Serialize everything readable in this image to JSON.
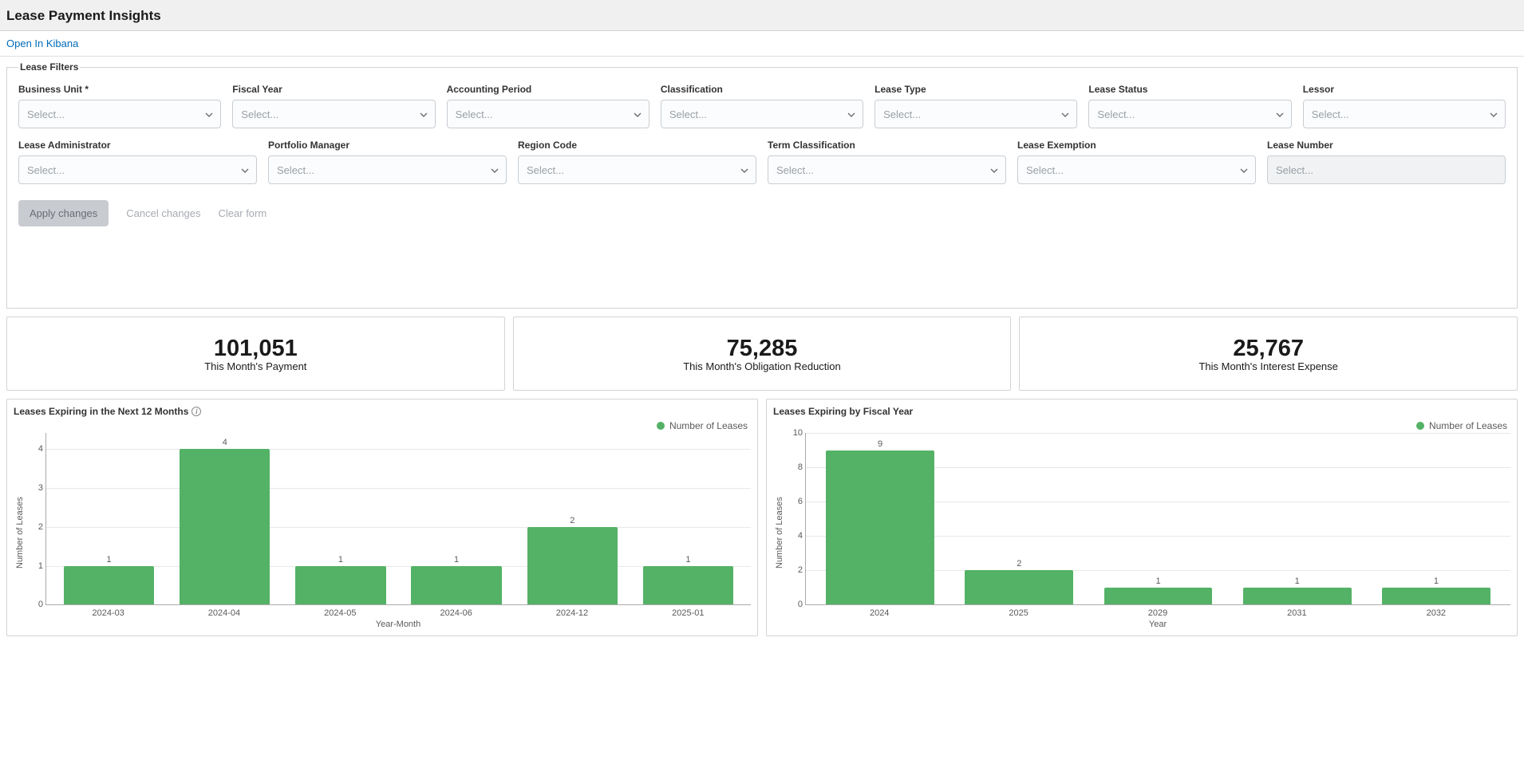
{
  "header": {
    "title": "Lease Payment Insights"
  },
  "link": {
    "open_in_kibana": "Open In Kibana"
  },
  "filters": {
    "legend": "Lease Filters",
    "row1": [
      {
        "label": "Business Unit *",
        "name": "business-unit",
        "placeholder": "Select...",
        "disabled": false
      },
      {
        "label": "Fiscal Year",
        "name": "fiscal-year",
        "placeholder": "Select...",
        "disabled": false
      },
      {
        "label": "Accounting Period",
        "name": "accounting-period",
        "placeholder": "Select...",
        "disabled": false
      },
      {
        "label": "Classification",
        "name": "classification",
        "placeholder": "Select...",
        "disabled": false
      },
      {
        "label": "Lease Type",
        "name": "lease-type",
        "placeholder": "Select...",
        "disabled": false
      },
      {
        "label": "Lease Status",
        "name": "lease-status",
        "placeholder": "Select...",
        "disabled": false
      },
      {
        "label": "Lessor",
        "name": "lessor",
        "placeholder": "Select...",
        "disabled": false
      }
    ],
    "row2": [
      {
        "label": "Lease Administrator",
        "name": "lease-administrator",
        "placeholder": "Select...",
        "disabled": false
      },
      {
        "label": "Portfolio Manager",
        "name": "portfolio-manager",
        "placeholder": "Select...",
        "disabled": false
      },
      {
        "label": "Region Code",
        "name": "region-code",
        "placeholder": "Select...",
        "disabled": false
      },
      {
        "label": "Term Classification",
        "name": "term-classification",
        "placeholder": "Select...",
        "disabled": false
      },
      {
        "label": "Lease Exemption",
        "name": "lease-exemption",
        "placeholder": "Select...",
        "disabled": false
      },
      {
        "label": "Lease Number",
        "name": "lease-number",
        "placeholder": "Select...",
        "disabled": true
      }
    ],
    "buttons": {
      "apply": "Apply changes",
      "cancel": "Cancel changes",
      "clear": "Clear form"
    }
  },
  "kpis": [
    {
      "value": "101,051",
      "label": "This Month's Payment",
      "name": "kpi-payment"
    },
    {
      "value": "75,285",
      "label": "This Month's Obligation Reduction",
      "name": "kpi-obligation"
    },
    {
      "value": "25,767",
      "label": "This Month's Interest Expense",
      "name": "kpi-interest"
    }
  ],
  "chart1": {
    "title": "Leases Expiring in the Next 12 Months",
    "has_info": true,
    "type": "bar",
    "legend_label": "Number of Leases",
    "legend_color": "#54b266",
    "bar_color": "#54b266",
    "xlabel": "Year-Month",
    "ylabel": "Number of Leases",
    "categories": [
      "2024-03",
      "2024-04",
      "2024-05",
      "2024-06",
      "2024-12",
      "2025-01"
    ],
    "values": [
      1,
      4,
      1,
      1,
      2,
      1
    ],
    "ymax": 4.4,
    "yticks": [
      0,
      1,
      2,
      3,
      4
    ],
    "grid_color": "#e8e8e8",
    "axis_color": "#aaaaaa",
    "text_color": "#5a5a5a",
    "label_fontsize": 11
  },
  "chart2": {
    "title": "Leases Expiring by Fiscal Year",
    "has_info": false,
    "type": "bar",
    "legend_label": "Number of Leases",
    "legend_color": "#54b266",
    "bar_color": "#54b266",
    "xlabel": "Year",
    "ylabel": "Number of Leases",
    "categories": [
      "2024",
      "2025",
      "2029",
      "2031",
      "2032"
    ],
    "values": [
      9,
      2,
      1,
      1,
      1
    ],
    "ymax": 10,
    "yticks": [
      0,
      2,
      4,
      6,
      8,
      10
    ],
    "grid_color": "#e8e8e8",
    "axis_color": "#aaaaaa",
    "text_color": "#5a5a5a",
    "label_fontsize": 11
  }
}
